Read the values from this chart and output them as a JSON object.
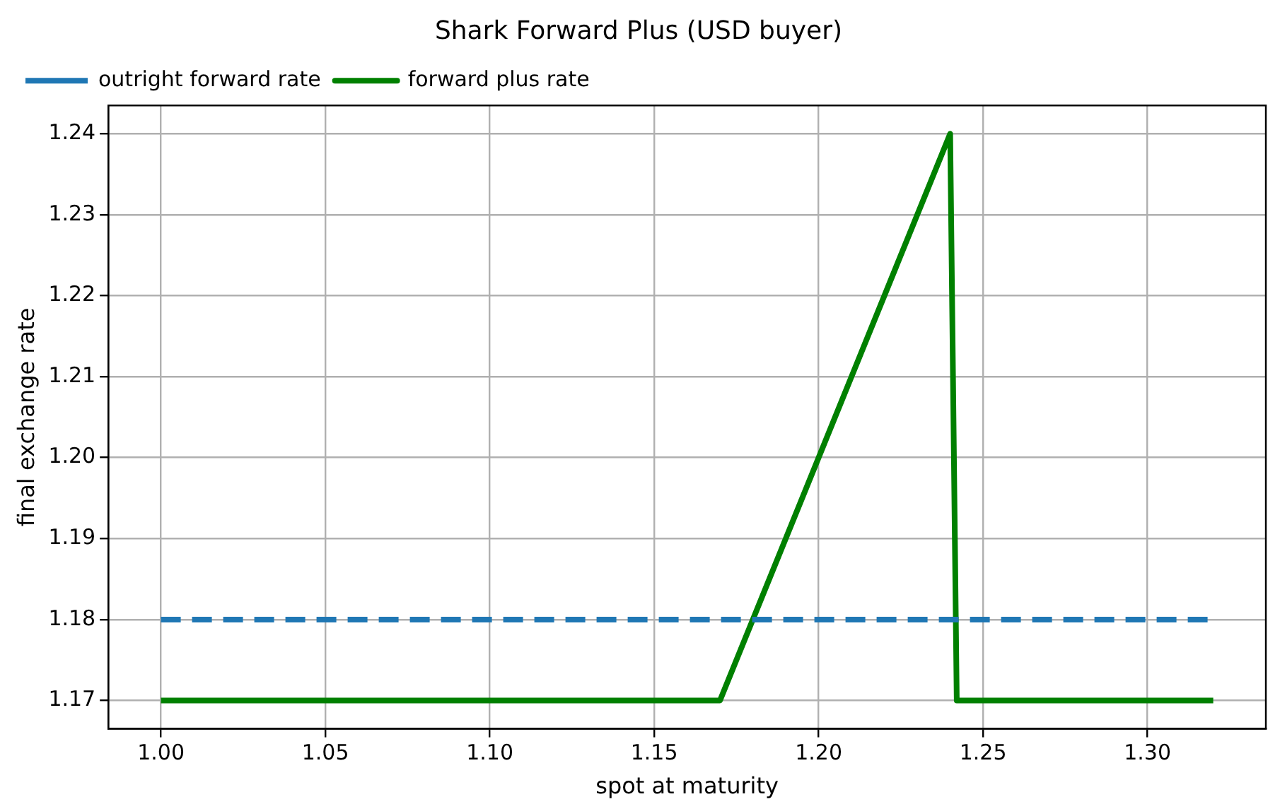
{
  "chart_data": {
    "type": "line",
    "title": "Shark Forward Plus (USD buyer)",
    "xlabel": "spot at maturity",
    "ylabel": "final exchange rate",
    "series": [
      {
        "name": "outright forward rate",
        "color": "#1f77b4",
        "line_style": "dashed",
        "x": [
          1.0,
          1.32
        ],
        "values": [
          1.18,
          1.18
        ]
      },
      {
        "name": "forward plus rate",
        "color": "#008000",
        "line_style": "solid",
        "x": [
          1.0,
          1.17,
          1.24,
          1.242,
          1.32
        ],
        "values": [
          1.17,
          1.17,
          1.24,
          1.17,
          1.17
        ]
      }
    ],
    "xlim": [
      0.984,
      1.336
    ],
    "ylim": [
      1.1665,
      1.2435
    ],
    "xticks": [
      {
        "value": 1.0,
        "label": "1.00"
      },
      {
        "value": 1.05,
        "label": "1.05"
      },
      {
        "value": 1.1,
        "label": "1.10"
      },
      {
        "value": 1.15,
        "label": "1.15"
      },
      {
        "value": 1.2,
        "label": "1.20"
      },
      {
        "value": 1.25,
        "label": "1.25"
      },
      {
        "value": 1.3,
        "label": "1.30"
      }
    ],
    "yticks": [
      {
        "value": 1.17,
        "label": "1.17"
      },
      {
        "value": 1.18,
        "label": "1.18"
      },
      {
        "value": 1.19,
        "label": "1.19"
      },
      {
        "value": 1.2,
        "label": "1.20"
      },
      {
        "value": 1.21,
        "label": "1.21"
      },
      {
        "value": 1.22,
        "label": "1.22"
      },
      {
        "value": 1.23,
        "label": "1.23"
      },
      {
        "value": 1.24,
        "label": "1.24"
      }
    ],
    "grid": true,
    "legend": "top left",
    "marker": "none"
  }
}
